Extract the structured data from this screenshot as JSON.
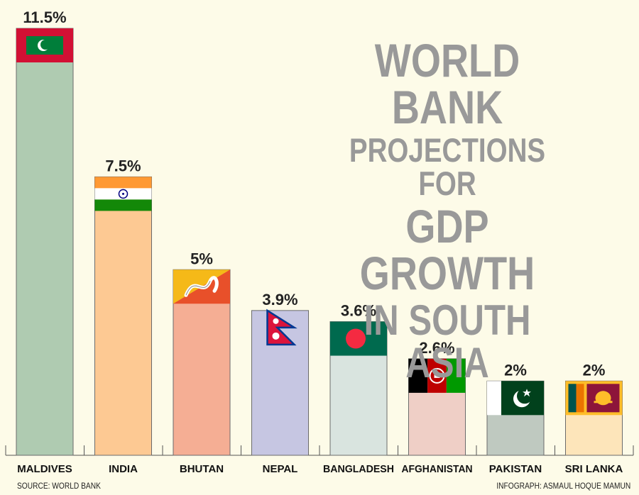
{
  "chart_data": {
    "type": "bar",
    "title_lines": [
      "WORLD BANK",
      "PROJECTIONS FOR",
      "GDP GROWTH",
      "IN SOUTH ASIA"
    ],
    "categories": [
      "MALDIVES",
      "INDIA",
      "BHUTAN",
      "NEPAL",
      "BANGLADESH",
      "AFGHANISTAN",
      "PAKISTAN",
      "SRI LANKA"
    ],
    "values": [
      11.5,
      7.5,
      5,
      3.9,
      3.6,
      2.6,
      2,
      2
    ],
    "value_labels": [
      "11.5%",
      "7.5%",
      "5%",
      "3.9%",
      "3.6%",
      "2.6%",
      "2%",
      "2%"
    ],
    "bar_colors": [
      "#afcbb1",
      "#fdc993",
      "#f5ae94",
      "#c6c6e2",
      "#d9e4df",
      "#efcfc6",
      "#bfc9c0",
      "#fde5ba"
    ],
    "flags": [
      "maldives-flag",
      "india-flag",
      "bhutan-flag",
      "nepal-flag",
      "bangladesh-flag",
      "afghanistan-flag",
      "pakistan-flag",
      "sri-lanka-flag"
    ],
    "ylim": [
      0,
      11.5
    ],
    "grid": false,
    "legend": "none"
  },
  "footer": {
    "source": "SOURCE: WORLD BANK",
    "credit": "INFOGRAPH: ASMAUL HOQUE MAMUN"
  }
}
